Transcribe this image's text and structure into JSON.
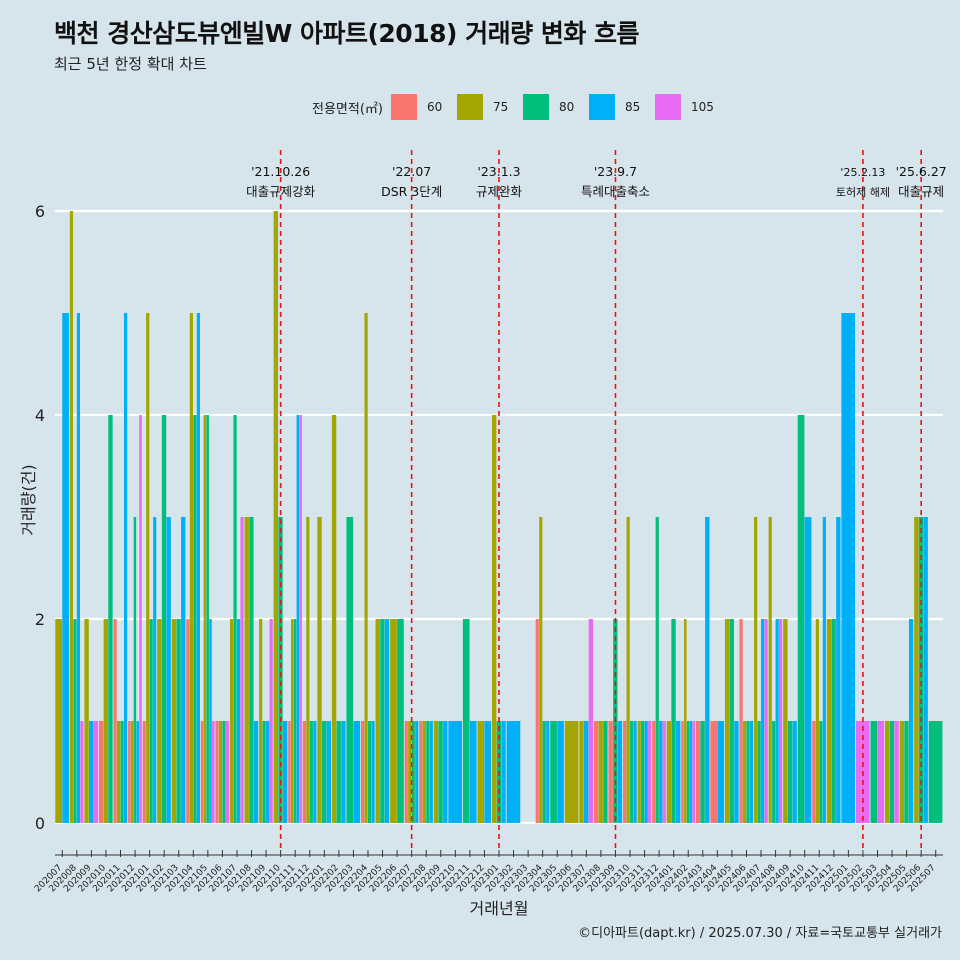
{
  "title": "백천 경산삼도뷰엔빌W 아파트(2018) 거래량 변화 흐름",
  "subtitle": "최근 5년 한정 확대 차트",
  "legend": {
    "title": "전용면적(㎡)",
    "items": [
      {
        "label": "60",
        "color": "#f8766d"
      },
      {
        "label": "75",
        "color": "#a3a500"
      },
      {
        "label": "80",
        "color": "#00bf7d"
      },
      {
        "label": "85",
        "color": "#00b0f6"
      },
      {
        "label": "105",
        "color": "#e76bf3"
      }
    ]
  },
  "caption": "©디아파트(dapt.kr) / 2025.07.30 / 자료=국토교통부 실거래가",
  "chart_data": {
    "type": "bar",
    "title": "백천 경산삼도뷰엔빌W 아파트(2018) 거래량 변화 흐름",
    "xlabel": "거래년월",
    "ylabel": "거래량(건)",
    "ylim": [
      0,
      6.6
    ],
    "yticks": [
      0,
      2,
      4,
      6
    ],
    "categories": [
      "202007",
      "202008",
      "202009",
      "202010",
      "202011",
      "202012",
      "202101",
      "202102",
      "202103",
      "202104",
      "202105",
      "202106",
      "202107",
      "202108",
      "202109",
      "202110",
      "202111",
      "202112",
      "202201",
      "202202",
      "202203",
      "202204",
      "202205",
      "202206",
      "202207",
      "202208",
      "202209",
      "202210",
      "202211",
      "202212",
      "202301",
      "202302",
      "202303",
      "202304",
      "202305",
      "202306",
      "202307",
      "202308",
      "202309",
      "202310",
      "202311",
      "202312",
      "202401",
      "202402",
      "202403",
      "202404",
      "202405",
      "202406",
      "202407",
      "202408",
      "202409",
      "202410",
      "202411",
      "202412",
      "202501",
      "202502",
      "202503",
      "202504",
      "202505",
      "202506",
      "202507"
    ],
    "series": [
      {
        "name": "60",
        "color": "#f8766d",
        "values": [
          0,
          0,
          0,
          1,
          2,
          1,
          1,
          0,
          0,
          2,
          1,
          1,
          0,
          0,
          0,
          0,
          1,
          1,
          0,
          0,
          0,
          1,
          0,
          0,
          1,
          1,
          0,
          0,
          0,
          0,
          0,
          0,
          0,
          2,
          0,
          0,
          0,
          1,
          1,
          1,
          0,
          1,
          0,
          1,
          1,
          1,
          0,
          2,
          0,
          0,
          0,
          0,
          1,
          0,
          0,
          0,
          0,
          0,
          0,
          0,
          0
        ]
      },
      {
        "name": "75",
        "color": "#a3a500",
        "values": [
          2,
          6,
          2,
          2,
          1,
          1,
          5,
          2,
          2,
          5,
          4,
          1,
          2,
          3,
          2,
          6,
          2,
          3,
          3,
          4,
          0,
          5,
          2,
          2,
          1,
          1,
          1,
          0,
          0,
          1,
          4,
          0,
          0,
          3,
          0,
          1,
          1,
          1,
          0,
          3,
          1,
          0,
          1,
          2,
          0,
          0,
          2,
          1,
          3,
          3,
          2,
          0,
          2,
          2,
          0,
          0,
          0,
          1,
          1,
          3,
          0
        ]
      },
      {
        "name": "80",
        "color": "#00bf7d",
        "values": [
          0,
          2,
          0,
          4,
          1,
          3,
          2,
          4,
          2,
          4,
          4,
          1,
          4,
          3,
          1,
          3,
          2,
          1,
          1,
          1,
          3,
          1,
          2,
          2,
          1,
          1,
          1,
          0,
          2,
          0,
          1,
          0,
          0,
          1,
          1,
          0,
          0,
          1,
          2,
          1,
          1,
          3,
          2,
          1,
          1,
          0,
          2,
          1,
          1,
          1,
          1,
          4,
          1,
          2,
          0,
          0,
          1,
          1,
          1,
          3,
          1
        ]
      },
      {
        "name": "85",
        "color": "#00b0f6",
        "values": [
          5,
          5,
          1,
          0,
          5,
          1,
          3,
          3,
          3,
          5,
          2,
          0,
          2,
          1,
          1,
          1,
          4,
          1,
          1,
          1,
          1,
          1,
          2,
          0,
          1,
          1,
          1,
          1,
          1,
          1,
          1,
          1,
          0,
          1,
          1,
          0,
          1,
          0,
          1,
          1,
          1,
          1,
          1,
          1,
          3,
          1,
          1,
          1,
          2,
          2,
          1,
          3,
          3,
          3,
          5,
          0,
          0,
          0,
          2,
          3,
          0
        ]
      },
      {
        "name": "105",
        "color": "#e76bf3",
        "values": [
          0,
          1,
          1,
          0,
          0,
          4,
          0,
          0,
          0,
          0,
          1,
          1,
          3,
          0,
          2,
          0,
          4,
          0,
          0,
          0,
          0,
          0,
          0,
          0,
          0,
          0,
          0,
          0,
          0,
          0,
          0,
          0,
          0,
          0,
          0,
          0,
          2,
          0,
          0,
          0,
          1,
          1,
          0,
          1,
          0,
          0,
          0,
          0,
          2,
          2,
          0,
          0,
          0,
          0,
          0,
          1,
          1,
          1,
          0,
          0,
          0
        ]
      }
    ],
    "events": [
      {
        "index": 15.5,
        "date": "'21.10.26",
        "label": "대출규제강화"
      },
      {
        "index": 24.5,
        "date": "'22.07",
        "label": "DSR 3단계"
      },
      {
        "index": 30.5,
        "date": "'23.1.3",
        "label": "규제완화"
      },
      {
        "index": 38.5,
        "date": "'23.9.7",
        "label": "특례대출축소"
      },
      {
        "index": 55.5,
        "date": "'25.2.13",
        "label": "토허제 해제"
      },
      {
        "index": 59.5,
        "date": "'25.6.27",
        "label": "대출규제"
      }
    ]
  }
}
